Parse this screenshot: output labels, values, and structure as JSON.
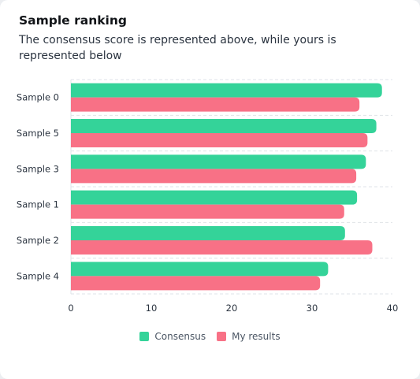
{
  "card": {
    "title": "Sample ranking",
    "subtitle": "The consensus score is represented above, while yours is represented below"
  },
  "colors": {
    "consensus": "#34d399",
    "my_results": "#f87186",
    "grid": "#dfe3e8",
    "axis": "#9aa2ad"
  },
  "chart_data": {
    "type": "bar",
    "orientation": "horizontal",
    "categories": [
      "Sample 0",
      "Sample 5",
      "Sample 3",
      "Sample 1",
      "Sample 2",
      "Sample 4"
    ],
    "series": [
      {
        "name": "Consensus",
        "values": [
          38.7,
          38.0,
          36.7,
          35.6,
          34.1,
          32.0
        ]
      },
      {
        "name": "My results",
        "values": [
          35.9,
          36.9,
          35.5,
          34.0,
          37.5,
          31.0
        ]
      }
    ],
    "xticks": [
      0,
      10,
      20,
      30,
      40
    ],
    "xlim": [
      0,
      40
    ],
    "grid": "dashed",
    "legend_position": "bottom"
  }
}
